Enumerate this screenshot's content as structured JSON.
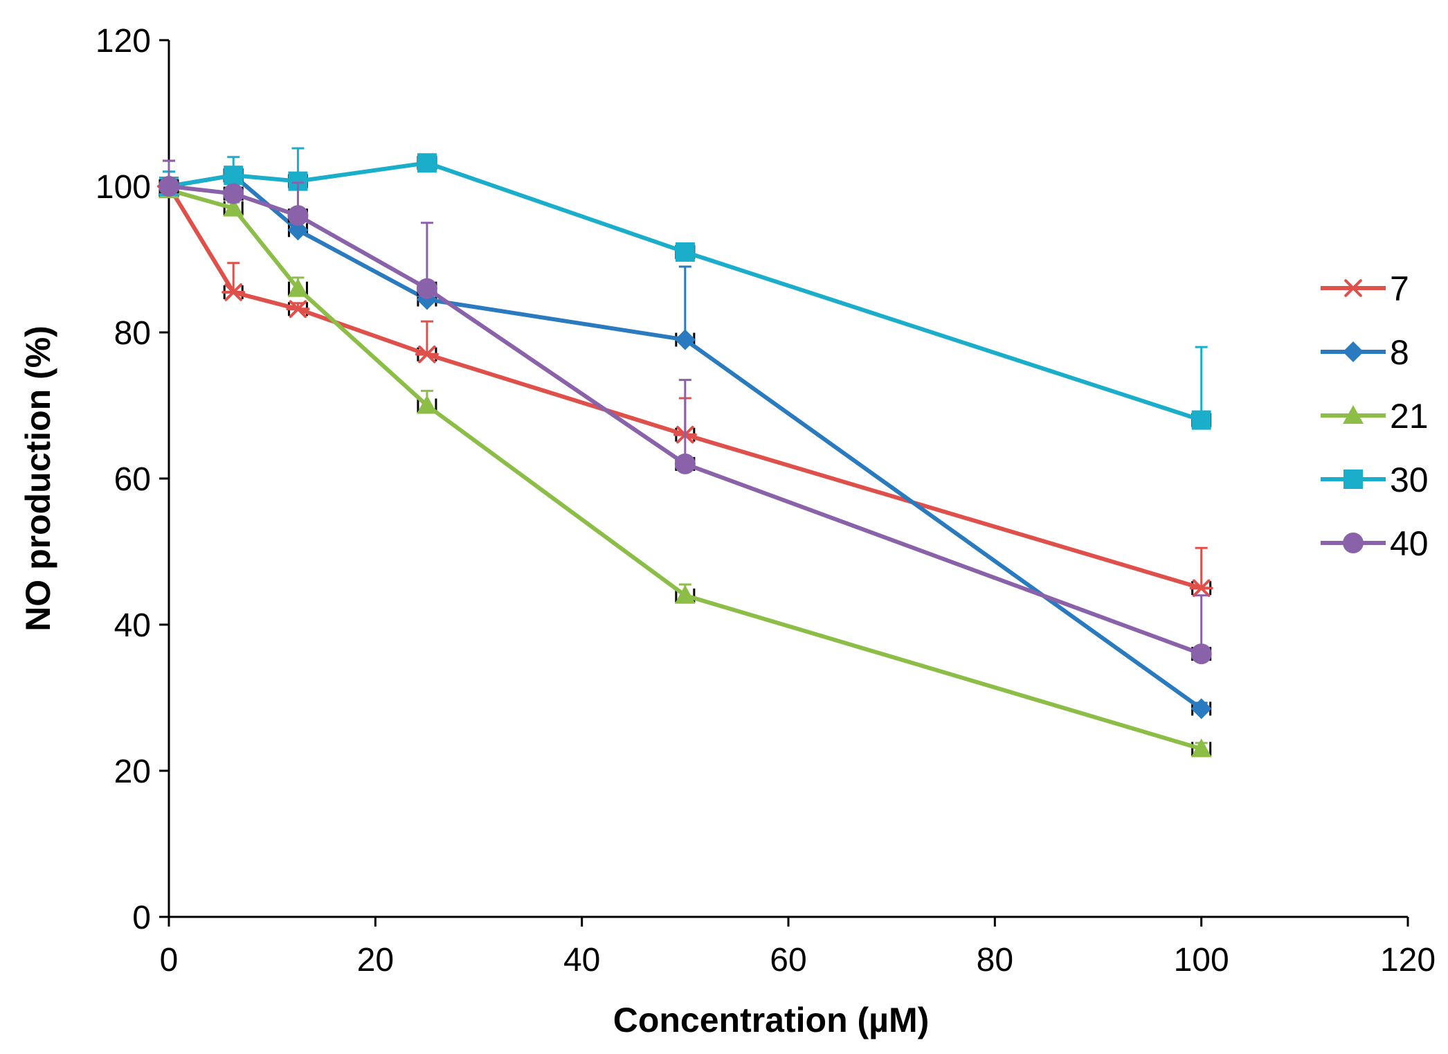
{
  "chart_data": {
    "type": "line",
    "title": "",
    "xlabel": "Concentration (µM)",
    "ylabel": "NO production (%)",
    "xlim": [
      0,
      120
    ],
    "ylim": [
      0,
      120
    ],
    "xticks": [
      0,
      20,
      40,
      60,
      80,
      100,
      120
    ],
    "yticks": [
      0,
      20,
      40,
      60,
      80,
      100,
      120
    ],
    "xtick_labels": [
      "0",
      "20",
      "40",
      "60",
      "80",
      "100",
      "120"
    ],
    "ytick_labels": [
      "0",
      "20",
      "40",
      "60",
      "80",
      "100",
      "120"
    ],
    "grid": false,
    "legend_position": "right",
    "x": [
      0,
      6.25,
      12.5,
      25,
      50,
      100
    ],
    "series": [
      {
        "name": "7",
        "color": "#e0504b",
        "marker": "star",
        "values": [
          100,
          85.5,
          83.2,
          77,
          66,
          45
        ],
        "error": [
          3.5,
          4,
          0.8,
          4.5,
          5,
          5.5
        ]
      },
      {
        "name": "8",
        "color": "#2a7abf",
        "marker": "diamond",
        "values": [
          100,
          101.5,
          94,
          84.5,
          79,
          28.5
        ],
        "error": [
          2,
          0.8,
          2,
          0.8,
          10,
          0.8
        ]
      },
      {
        "name": "21",
        "color": "#8cbd47",
        "marker": "triangle",
        "values": [
          99.5,
          97,
          86,
          70,
          44,
          23
        ],
        "error": [
          0.8,
          0.8,
          1.5,
          2,
          1.5,
          0.8
        ]
      },
      {
        "name": "30",
        "color": "#1aaecb",
        "marker": "square",
        "values": [
          100,
          101.5,
          100.7,
          103.2,
          91,
          68
        ],
        "error": [
          2,
          2.5,
          4.5,
          0.8,
          0,
          10
        ]
      },
      {
        "name": "40",
        "color": "#8a62aa",
        "marker": "circle",
        "values": [
          100,
          99,
          96,
          86,
          62,
          36
        ],
        "error": [
          3.5,
          0.8,
          4.5,
          9,
          11.5,
          8
        ]
      }
    ]
  }
}
